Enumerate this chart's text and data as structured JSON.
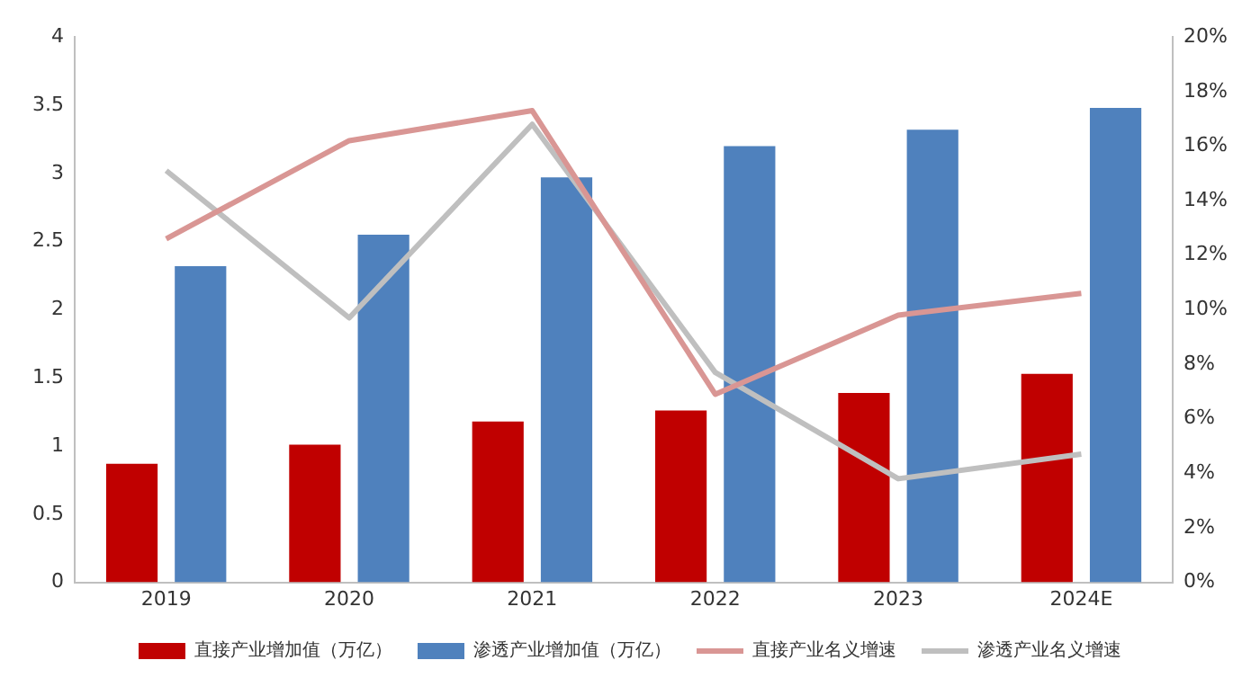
{
  "chart_data": {
    "type": "bar",
    "categories": [
      "2019",
      "2020",
      "2021",
      "2022",
      "2023",
      "2024E"
    ],
    "series": [
      {
        "name": "直接产业增加值（万亿）",
        "color": "#c00000",
        "values": [
          0.87,
          1.01,
          1.18,
          1.26,
          1.39,
          1.53
        ]
      },
      {
        "name": "渗透产业增加值（万亿）",
        "color": "#4f81bd",
        "values": [
          2.32,
          2.55,
          2.97,
          3.2,
          3.32,
          3.48
        ]
      },
      {
        "name": "直接产业名义增速",
        "type": "line",
        "axis": "y2",
        "color": "#d99694",
        "values": [
          12.6,
          16.2,
          17.3,
          6.9,
          9.8,
          10.6
        ]
      },
      {
        "name": "渗透产业名义增速",
        "type": "line",
        "axis": "y2",
        "color": "#bfbfbf",
        "values": [
          15.1,
          9.7,
          16.8,
          7.7,
          3.8,
          4.7
        ]
      }
    ],
    "ylim": [
      0,
      4
    ],
    "yticks": [
      0,
      0.5,
      1,
      1.5,
      2,
      2.5,
      3,
      3.5,
      4
    ],
    "y2lim": [
      0,
      20
    ],
    "y2ticks": [
      {
        "value": 0,
        "label": "0%"
      },
      {
        "value": 2,
        "label": "2%"
      },
      {
        "value": 4,
        "label": "4%"
      },
      {
        "value": 6,
        "label": "6%"
      },
      {
        "value": 8,
        "label": "8%"
      },
      {
        "value": 10,
        "label": "10%"
      },
      {
        "value": 12,
        "label": "12%"
      },
      {
        "value": 14,
        "label": "14%"
      },
      {
        "value": 16,
        "label": "16%"
      },
      {
        "value": 18,
        "label": "18%"
      },
      {
        "value": 20,
        "label": "20%"
      }
    ],
    "grid": false,
    "legend": "bottom",
    "marker": "none",
    "line_style": "solid"
  }
}
